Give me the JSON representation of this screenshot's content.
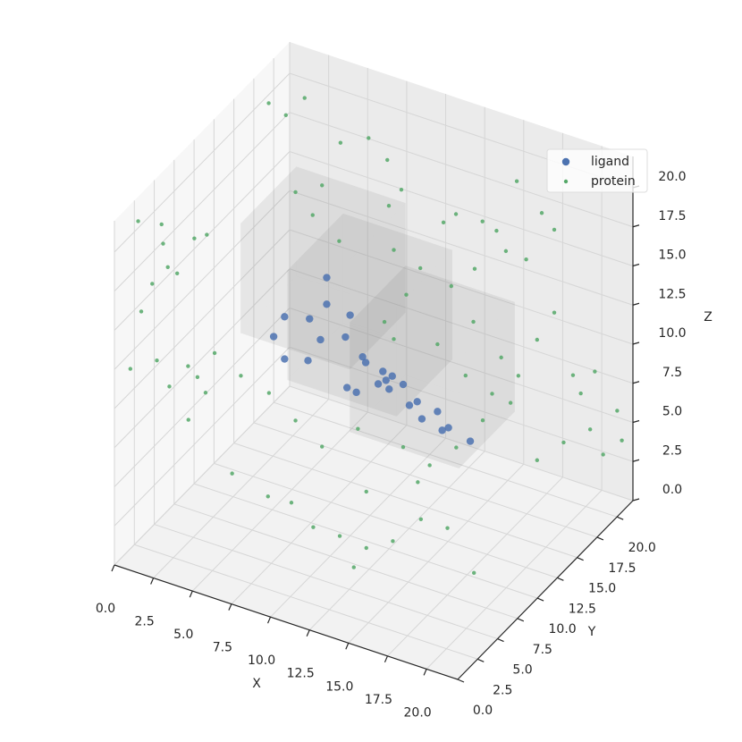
{
  "chart_data": {
    "type": "scatter3d",
    "xlabel": "X",
    "ylabel": "Y",
    "zlabel": "Z",
    "xlim": [
      0,
      22
    ],
    "ylim": [
      0,
      22
    ],
    "zlim": [
      0,
      22
    ],
    "xticks": [
      {
        "value": 0,
        "label": "0.0"
      },
      2.5,
      {
        "value": 5,
        "label": "5.0"
      },
      7.5,
      {
        "value": 10,
        "label": "10.0"
      },
      12.5,
      {
        "value": 15,
        "label": "15.0"
      },
      17.5,
      {
        "value": 20,
        "label": "20.0"
      }
    ],
    "yticks": [
      {
        "value": 0,
        "label": "0.0"
      },
      2.5,
      {
        "value": 5,
        "label": "5.0"
      },
      7.5,
      {
        "value": 10,
        "label": "10.0"
      },
      12.5,
      {
        "value": 15,
        "label": "15.0"
      },
      17.5,
      {
        "value": 20,
        "label": "20.0"
      }
    ],
    "zticks": [
      {
        "value": 0,
        "label": "0.0"
      },
      2.5,
      {
        "value": 5,
        "label": "5.0"
      },
      7.5,
      {
        "value": 10,
        "label": "10.0"
      },
      12.5,
      {
        "value": 15,
        "label": "15.0"
      },
      17.5,
      {
        "value": 20,
        "label": "20.0"
      }
    ],
    "grid": true,
    "legend": "upper right",
    "boxes": [
      {
        "min": [
          4,
          8,
          12
        ],
        "max": [
          11,
          15,
          19
        ]
      },
      {
        "min": [
          7,
          8,
          10
        ],
        "max": [
          14,
          15,
          17
        ]
      },
      {
        "min": [
          11,
          8,
          8
        ],
        "max": [
          18,
          15,
          15
        ]
      }
    ],
    "series": [
      {
        "name": "ligand",
        "color": "#4c72b0",
        "x": [
          8.5,
          8.5,
          5.8,
          7.4,
          10.0,
          5.1,
          8.1,
          9.7,
          5.8,
          7.3,
          10.8,
          11.0,
          12.1,
          12.7,
          12.3,
          9.8,
          10.4,
          11.8,
          12.5,
          13.4,
          14.3,
          13.8,
          15.6,
          14.6,
          16.3,
          15.9,
          17.7
        ],
        "y": [
          10,
          10,
          10,
          10,
          10,
          10,
          10,
          10,
          10,
          10,
          10,
          10,
          10,
          10,
          10,
          10,
          10,
          10,
          10,
          10,
          10,
          10,
          10,
          10,
          10,
          10,
          10
        ],
        "z": [
          16.0,
          14.3,
          12.6,
          13.0,
          14.1,
          11.1,
          11.9,
          12.6,
          9.9,
          10.3,
          11.7,
          11.4,
          11.2,
          11.1,
          10.7,
          9.4,
          9.3,
          10.3,
          10.2,
          10.8,
          10.0,
          9.6,
          9.8,
          9.0,
          9.0,
          8.7,
          8.6
        ]
      },
      {
        "name": "protein",
        "color": "#55a868",
        "x": [
          0.5,
          2.0,
          2.1,
          1.4,
          0.7,
          0.0,
          2.5,
          1.7,
          4.3,
          3.7,
          2.4,
          3.0,
          4.9,
          4.1,
          5.4,
          0.7,
          1.8,
          3.0,
          5.3,
          7.1,
          8.3,
          9.2,
          8.4,
          11.9,
          12.7,
          14.4,
          15.3,
          16.6,
          18.2,
          19.0,
          15.9,
          17.2,
          13.9,
          12.4,
          19.0,
          17.9,
          20.2,
          21.6,
          21.3,
          19.6,
          17.9,
          20.7,
          16.7,
          16.2,
          15.6,
          21.5,
          20.6,
          21.8,
          12.8,
          14.5,
          13.6,
          12.2,
          15.6,
          17.4,
          16.8,
          15.1,
          13.4,
          10.5,
          8.2,
          6.5,
          4.8,
          3.0,
          9.3,
          6.5,
          7.6,
          8.2,
          12.8,
          17.9,
          19.1,
          18.5,
          9.3,
          12.4,
          13.3,
          14.1,
          15.8,
          17.6,
          19.3,
          21.0,
          10.7,
          7.8,
          5.5,
          14.1,
          17.4,
          3.8,
          2.7
        ],
        "y": [
          2,
          2,
          2,
          2,
          2,
          2,
          2,
          2,
          2,
          2,
          2,
          2,
          2,
          2,
          2,
          18,
          18,
          18,
          18,
          18,
          18,
          18,
          18,
          18,
          18,
          18,
          18,
          18,
          18,
          18,
          18,
          18,
          18,
          18,
          18,
          18,
          18,
          18,
          18,
          18,
          18,
          18,
          18,
          18,
          18,
          21,
          21,
          21,
          10,
          10,
          10,
          10,
          10,
          10,
          10,
          10,
          10,
          10,
          10,
          10,
          10,
          10,
          10,
          10,
          10,
          10,
          10,
          10,
          10,
          10,
          4,
          4,
          4,
          4,
          4,
          4,
          4,
          4,
          4,
          4,
          4,
          4,
          4,
          4,
          4
        ],
        "z": [
          21.1,
          21.4,
          20.2,
          17.4,
          15.4,
          11.5,
          11.2,
          12.6,
          12.4,
          12.9,
          18.8,
          18.6,
          21.7,
          21.2,
          14.3,
          20.4,
          20.0,
          21.5,
          19.4,
          20.3,
          19.3,
          17.7,
          16.4,
          16.5,
          17.3,
          17.4,
          17.1,
          20.7,
          19.2,
          18.4,
          16.0,
          15.9,
          14.2,
          12.6,
          13.1,
          11.0,
          9.5,
          10.2,
          6.4,
          5.0,
          3.3,
          8.5,
          8.3,
          6.4,
          9.1,
          6.1,
          3.0,
          4.3,
          19.2,
          18.6,
          16.6,
          14.4,
          14.1,
          12.7,
          7.9,
          6.2,
          6.8,
          7.0,
          5.1,
          6.2,
          7.4,
          7.9,
          18.6,
          20.8,
          19.7,
          21.8,
          13.5,
          16.3,
          12.1,
          10.2,
          5.0,
          3.9,
          2.2,
          3.7,
          4.7,
          6.7,
          6.7,
          4.4,
          3.9,
          4.9,
          5.6,
          7.3,
          9.0,
          10.2,
          8.1
        ]
      }
    ]
  }
}
